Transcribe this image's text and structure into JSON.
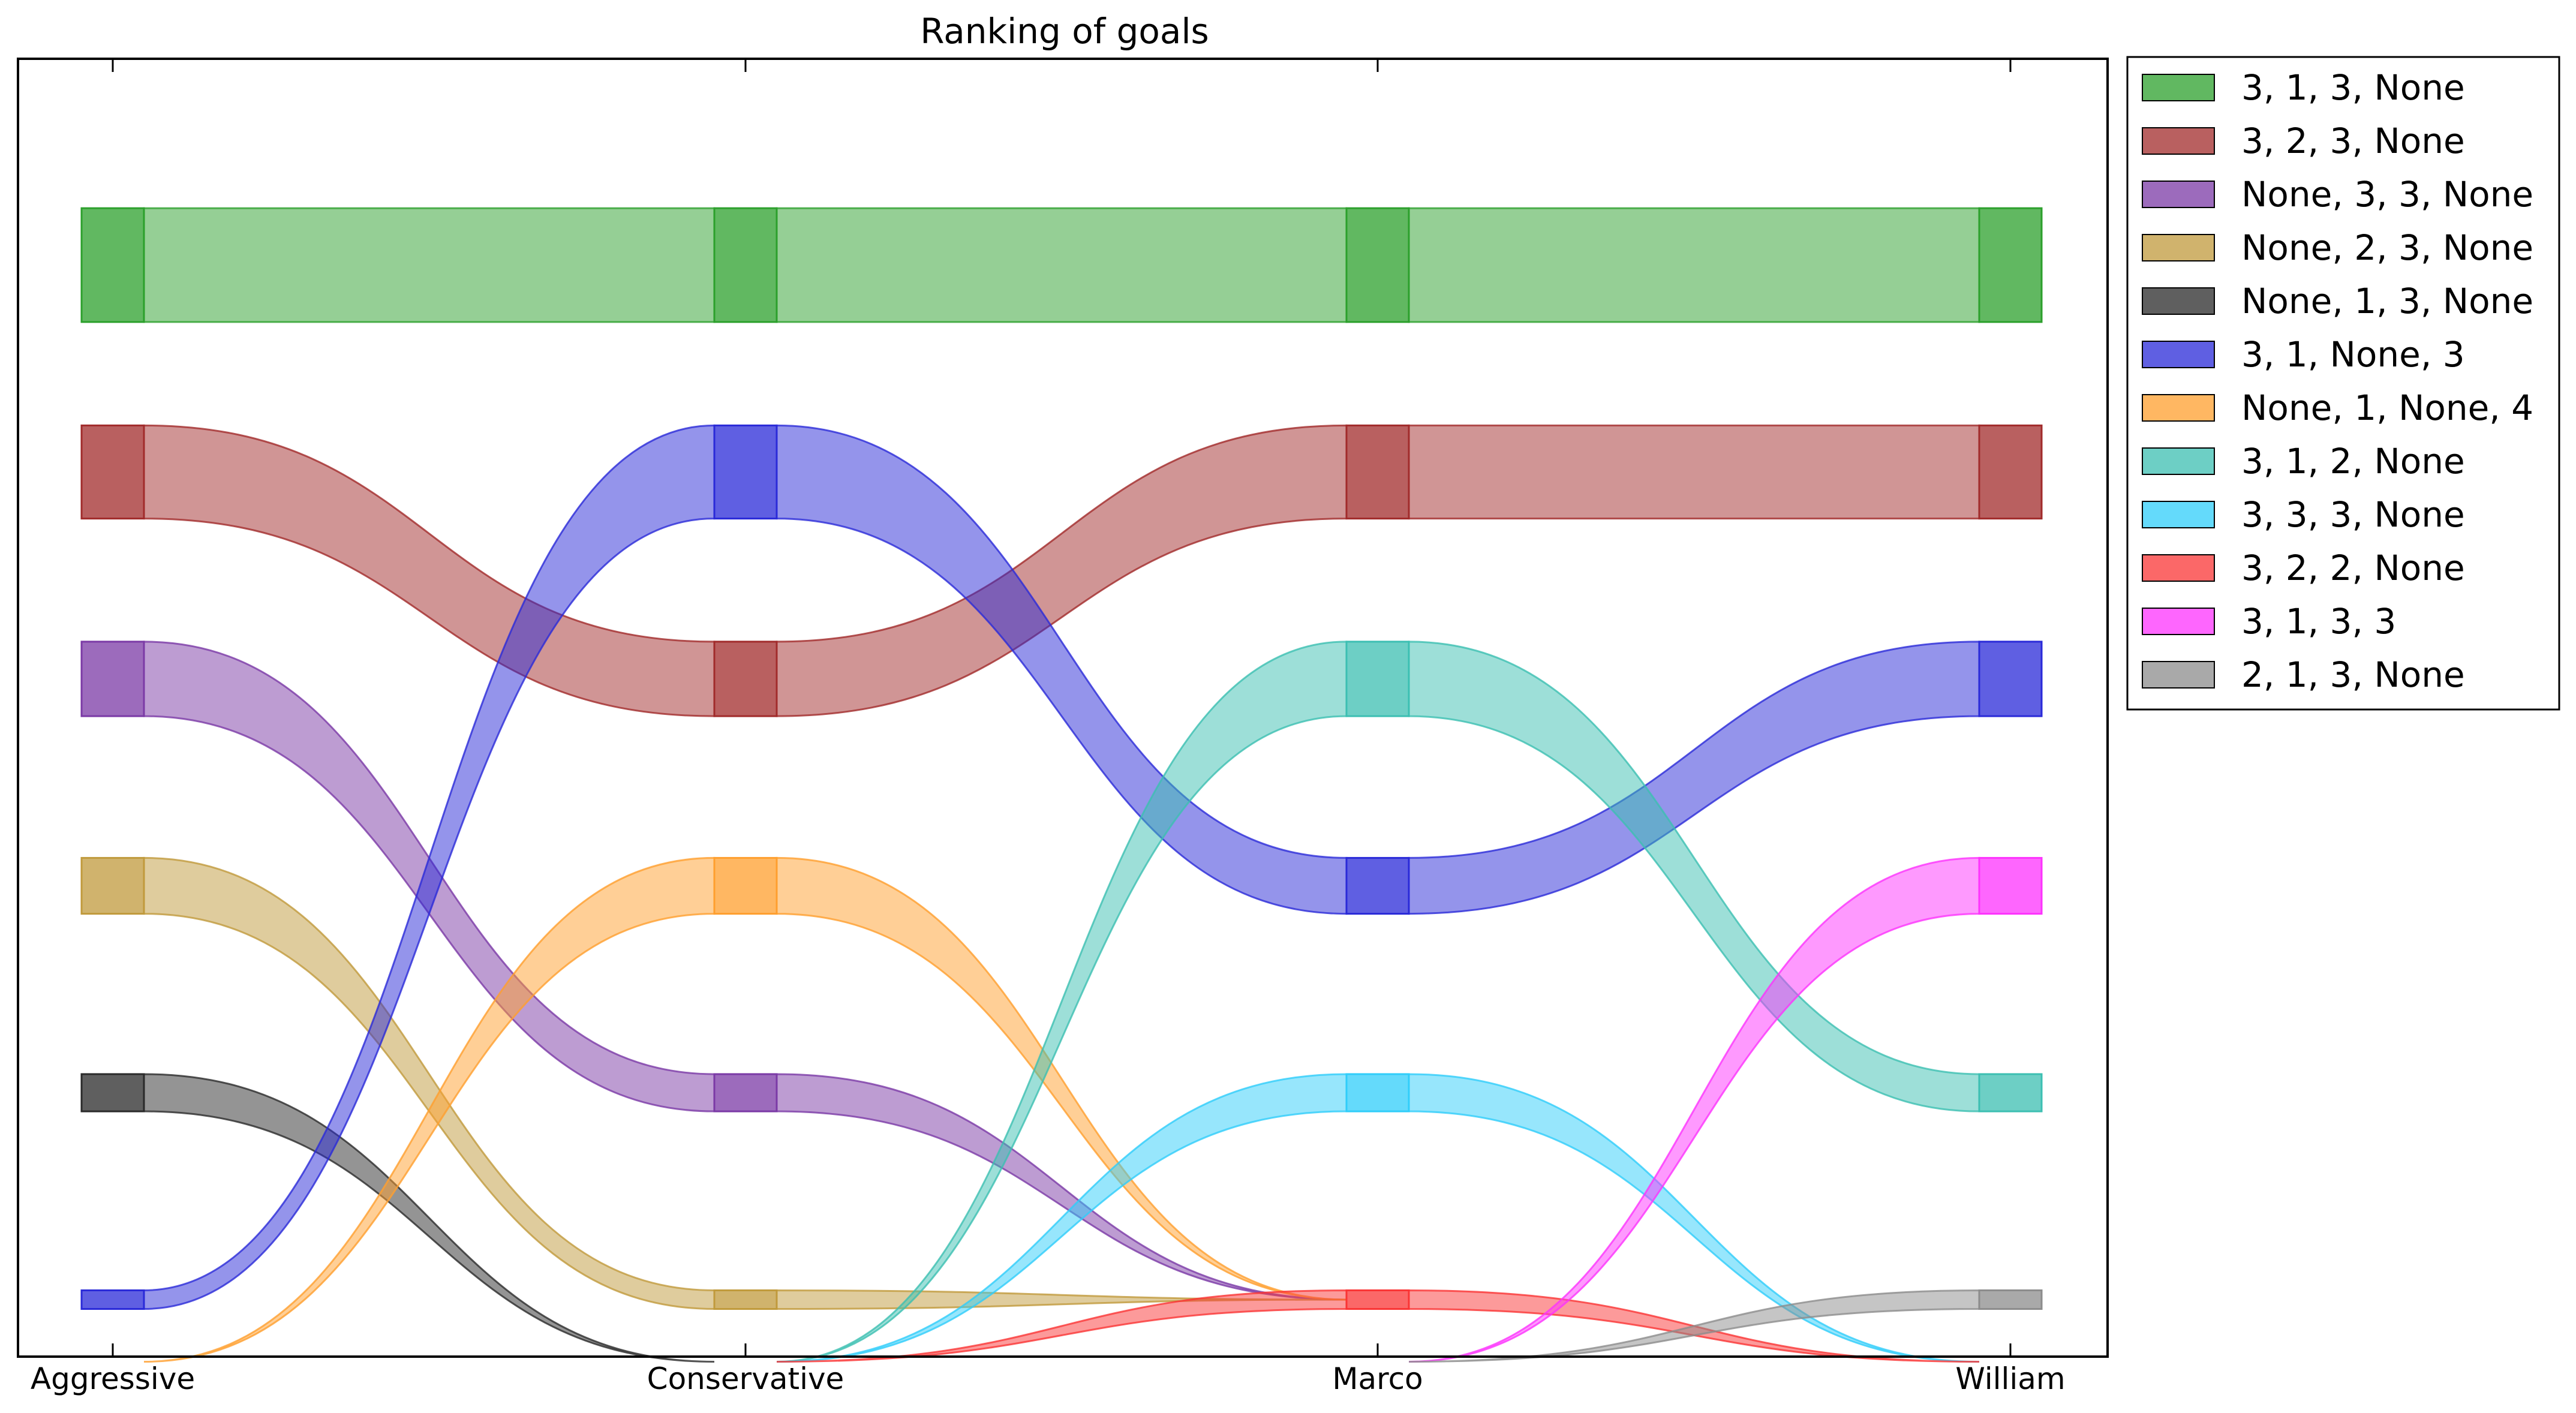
{
  "chart_data": {
    "type": "alluvial",
    "title": "Ranking of goals",
    "stages": [
      "Aggressive",
      "Conservative",
      "Marco",
      "William"
    ],
    "rank_range": [
      0,
      6
    ],
    "flows": [
      {
        "name": "3, 1, 3, None",
        "color": "#2ca02c",
        "ranks": [
          1,
          1,
          1,
          1
        ],
        "widths": [
          0.55,
          0.55,
          0.55,
          0.55
        ]
      },
      {
        "name": "3, 2, 3, None",
        "color": "#a12b2b",
        "ranks": [
          2,
          3,
          2,
          2
        ],
        "widths": [
          0.45,
          0.36,
          0.45,
          0.45
        ]
      },
      {
        "name": "None, 3, 3, None",
        "color": "#7b3aa6",
        "ranks": [
          3,
          5,
          6,
          null
        ],
        "widths": [
          0.36,
          0.18,
          0.0,
          0.0
        ]
      },
      {
        "name": "None, 2, 3, None",
        "color": "#c09a3c",
        "ranks": [
          4,
          6,
          6,
          null
        ],
        "widths": [
          0.27,
          0.09,
          0.0,
          0.0
        ]
      },
      {
        "name": "None, 1, 3, None",
        "color": "#2a2a2a",
        "ranks": [
          5,
          6.3,
          null,
          null
        ],
        "widths": [
          0.18,
          0.0,
          0.0,
          0.0
        ]
      },
      {
        "name": "3, 1, None, 3",
        "color": "#2a2ad8",
        "ranks": [
          6,
          2,
          4,
          3
        ],
        "widths": [
          0.09,
          0.45,
          0.27,
          0.36
        ]
      },
      {
        "name": "None, 1, None, 4",
        "color": "#ff9f2e",
        "ranks": [
          6.3,
          4,
          6,
          null
        ],
        "widths": [
          0.0,
          0.27,
          0.0,
          0.0
        ]
      },
      {
        "name": "3, 1, 2, None",
        "color": "#3cbfb2",
        "ranks": [
          null,
          6.3,
          3,
          5
        ],
        "widths": [
          0.0,
          0.0,
          0.36,
          0.18
        ]
      },
      {
        "name": "3, 3, 3, None",
        "color": "#30cdfa",
        "ranks": [
          null,
          6.3,
          5,
          6.3
        ],
        "widths": [
          0.0,
          0.0,
          0.18,
          0.0
        ]
      },
      {
        "name": "3, 2, 2, None",
        "color": "#fa3535",
        "ranks": [
          null,
          6.3,
          6,
          6.3
        ],
        "widths": [
          0.0,
          0.0,
          0.09,
          0.0
        ]
      },
      {
        "name": "3, 1, 3, 3",
        "color": "#fd33fd",
        "ranks": [
          null,
          null,
          6.3,
          4
        ],
        "widths": [
          0.0,
          0.0,
          0.0,
          0.27
        ]
      },
      {
        "name": "2, 1, 3, None",
        "color": "#8c8c8c",
        "ranks": [
          null,
          null,
          6.3,
          6
        ],
        "widths": [
          0.0,
          0.0,
          0.0,
          0.09
        ]
      }
    ],
    "legend_position": "outside-top-right"
  }
}
